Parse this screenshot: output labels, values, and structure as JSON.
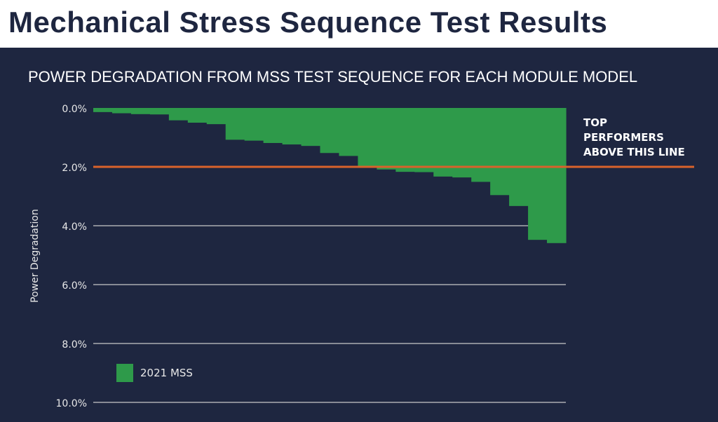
{
  "header": {
    "title": "Mechanical Stress Sequence Test Results"
  },
  "chart_data": {
    "type": "bar",
    "title": "POWER DEGRADATION FROM MSS TEST SEQUENCE FOR EACH MODULE MODEL",
    "ylabel": "Power Degradation",
    "xlabel": "",
    "ylim": [
      0,
      10
    ],
    "y_inverted": true,
    "yticks": [
      "0.0%",
      "2.0%",
      "4.0%",
      "6.0%",
      "8.0%",
      "10.0%"
    ],
    "grid": true,
    "series": [
      {
        "name": "2021 MSS",
        "color": "#2e9a4a",
        "values": [
          0.14,
          0.18,
          0.21,
          0.22,
          0.42,
          0.5,
          0.55,
          1.08,
          1.11,
          1.19,
          1.24,
          1.29,
          1.53,
          1.63,
          2.0,
          2.09,
          2.17,
          2.18,
          2.33,
          2.36,
          2.51,
          2.96,
          3.33,
          4.48,
          4.59
        ]
      }
    ],
    "threshold": {
      "value": 2.0,
      "color": "#d9622b",
      "label": "TOP\nPERFORMERS\nABOVE THIS LINE"
    },
    "legend": "bottom-left"
  },
  "colors": {
    "background": "#1e2640",
    "grid": "#c8c8c8"
  }
}
